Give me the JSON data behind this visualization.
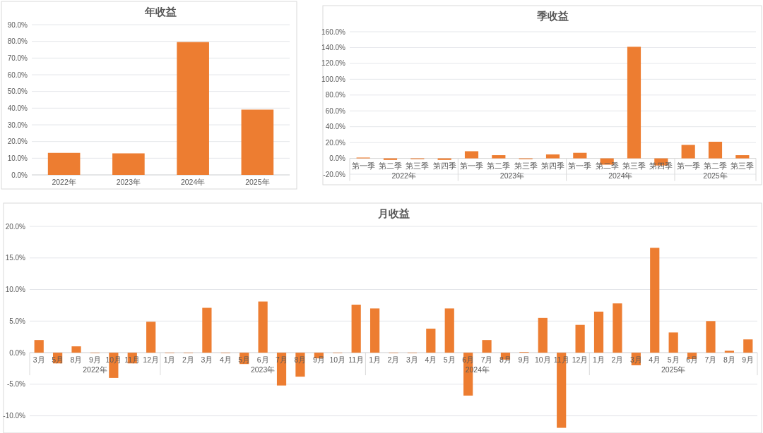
{
  "chart_data": [
    {
      "type": "bar",
      "title": "年收益",
      "categories": [
        "2022年",
        "2023年",
        "2024年",
        "2025年"
      ],
      "values": [
        13.2,
        12.9,
        79.6,
        39.1
      ],
      "color": "#ed7d31",
      "ylim": [
        0,
        90
      ],
      "yticks": [
        {
          "value": 0,
          "label": "0.0%"
        },
        {
          "value": 10,
          "label": "10.0%"
        },
        {
          "value": 20,
          "label": "20.0%"
        },
        {
          "value": 30,
          "label": "30.0%"
        },
        {
          "value": 40,
          "label": "40.0%"
        },
        {
          "value": 50,
          "label": "50.0%"
        },
        {
          "value": 60,
          "label": "60.0%"
        },
        {
          "value": 70,
          "label": "70.0%"
        },
        {
          "value": 80,
          "label": "80.0%"
        },
        {
          "value": 90,
          "label": "90.0%"
        }
      ],
      "grid": "y"
    },
    {
      "type": "bar",
      "title": "季收益",
      "categories": [
        "第一季",
        "第二季",
        "第三季",
        "第四季",
        "第一季",
        "第二季",
        "第三季",
        "第四季",
        "第一季",
        "第二季",
        "第三季",
        "第四季",
        "第一季",
        "第二季",
        "第三季"
      ],
      "values": [
        1,
        -2,
        -1,
        -2,
        9,
        4,
        -1,
        5,
        7,
        -8,
        141,
        -9,
        17,
        21,
        4
      ],
      "color": "#ed7d31",
      "ylim": [
        -20,
        160
      ],
      "yticks": [
        {
          "value": -20,
          "label": "-20.0%"
        },
        {
          "value": 0,
          "label": "0.0%"
        },
        {
          "value": 20,
          "label": "20.0%"
        },
        {
          "value": 40,
          "label": "40.0%"
        },
        {
          "value": 60,
          "label": "60.0%"
        },
        {
          "value": 80,
          "label": "80.0%"
        },
        {
          "value": 100,
          "label": "100.0%"
        },
        {
          "value": 120,
          "label": "120.0%"
        },
        {
          "value": 140,
          "label": "140.0%"
        },
        {
          "value": 160,
          "label": "160.0%"
        }
      ],
      "grid": "y",
      "annotations": [
        "2022年",
        "2023年",
        "2024年",
        "2025年"
      ]
    },
    {
      "type": "bar",
      "title": "月收益",
      "categories": [
        "3月",
        "5月",
        "8月",
        "9月",
        "10月",
        "11月",
        "12月",
        "1月",
        "2月",
        "3月",
        "4月",
        "5月",
        "6月",
        "7月",
        "8月",
        "9月",
        "10月",
        "11月",
        "1月",
        "2月",
        "3月",
        "4月",
        "5月",
        "6月",
        "7月",
        "8月",
        "9月",
        "10月",
        "11月",
        "12月",
        "1月",
        "2月",
        "3月",
        "4月",
        "5月",
        "6月",
        "7月",
        "8月",
        "9月"
      ],
      "values": [
        2.0,
        -1.7,
        1.0,
        0,
        -4.0,
        -1.7,
        4.9,
        0,
        0,
        7.1,
        0,
        -1.8,
        8.1,
        -5.2,
        -3.8,
        -0.9,
        0,
        7.6,
        7.0,
        0,
        0,
        3.8,
        7.0,
        -6.8,
        2.0,
        -1.1,
        0.1,
        5.5,
        -11.9,
        4.4,
        6.5,
        7.8,
        -2.0,
        16.6,
        3.2,
        -1.0,
        5.0,
        0.3,
        2.1
      ],
      "color": "#ed7d31",
      "ylim": [
        -12.5,
        20
      ],
      "yticks": [
        {
          "value": -10,
          "label": "-10.0%"
        },
        {
          "value": -5,
          "label": "-5.0%"
        },
        {
          "value": 0,
          "label": "0.0%"
        },
        {
          "value": 5,
          "label": "5.0%"
        },
        {
          "value": 10,
          "label": "10.0%"
        },
        {
          "value": 15,
          "label": "15.0%"
        },
        {
          "value": 20,
          "label": "20.0%"
        }
      ],
      "grid": "y",
      "annotations": [
        "2022年",
        "2023年",
        "2024年",
        "2025年"
      ]
    }
  ]
}
